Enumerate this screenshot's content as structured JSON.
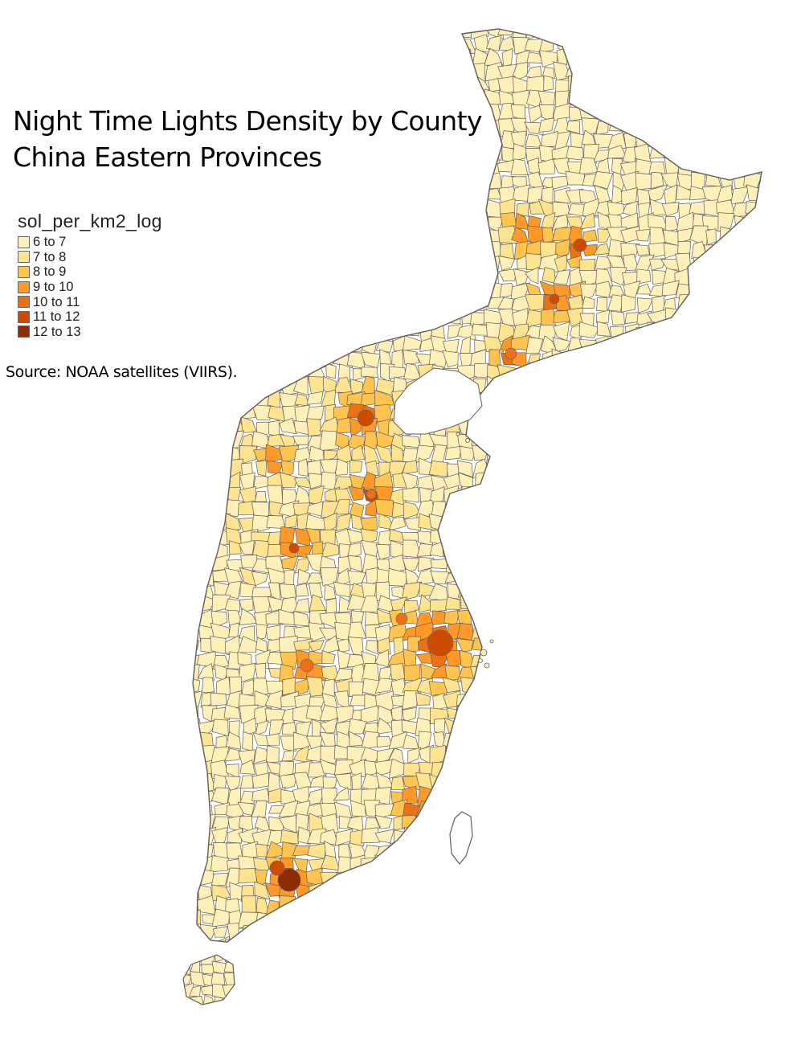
{
  "map": {
    "title_line1": "Night Time Lights Density by County",
    "title_line2": "China Eastern Provinces",
    "source": "Source: NOAA satellites (VIIRS).",
    "variable": "sol_per_km2_log",
    "border_color": "#5e5e5e"
  },
  "legend": {
    "title": "sol_per_km2_log",
    "items": [
      {
        "label": "6 to 7",
        "color": "#ffefb8"
      },
      {
        "label": "7 to 8",
        "color": "#fee391"
      },
      {
        "label": "8 to 9",
        "color": "#fec44f"
      },
      {
        "label": "9 to 10",
        "color": "#fe9929"
      },
      {
        "label": "10 to 11",
        "color": "#ec7014"
      },
      {
        "label": "11 to 12",
        "color": "#cc4c02"
      },
      {
        "label": "12 to 13",
        "color": "#8c2d04"
      }
    ]
  }
}
